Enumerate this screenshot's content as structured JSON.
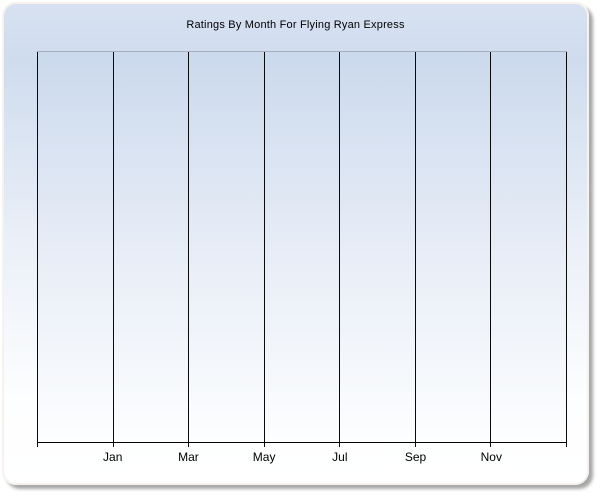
{
  "chart_data": {
    "type": "line",
    "title": "Ratings By Month For Flying Ryan Express",
    "x_tick_labels": [
      "Jan",
      "Mar",
      "May",
      "Jul",
      "Sep",
      "Nov"
    ],
    "y_tick_labels": [],
    "series": [],
    "xlabel": "",
    "ylabel": "",
    "legend": "none",
    "grid": "vertical-gridlines-only",
    "gridline_count": 8
  },
  "colors": {
    "card_gradient_top": "#d7e1f1",
    "card_gradient_mid": "#e9eef7",
    "card_gradient_bottom": "#ffffff",
    "plot_gradient_top": "#cbd9ed",
    "plot_gradient_bottom": "#fdfeff",
    "gridline": "#0a0a0a",
    "plot_top_border": "#a9aebc",
    "axis_line": "#000000",
    "title_color": "#000000",
    "tick_label_color": "#000000"
  }
}
